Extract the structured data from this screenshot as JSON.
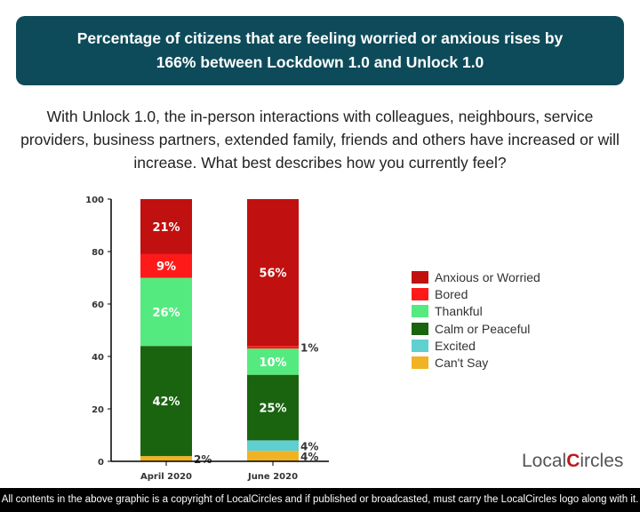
{
  "banner": {
    "title_line1": "Percentage of citizens that are feeling worried or anxious rises by",
    "title_line2": "166% between Lockdown 1.0 and Unlock 1.0"
  },
  "question": "With Unlock 1.0, the in-person interactions with colleagues, neighbours, service providers, business partners, extended family, friends and others have increased or will increase. What best describes how you currently feel?",
  "chart_data": {
    "type": "bar",
    "stacked": true,
    "categories": [
      "April 2020",
      "June 2020"
    ],
    "ylim": [
      0,
      100
    ],
    "yticks": [
      0,
      20,
      40,
      60,
      80,
      100
    ],
    "legend_position": "right",
    "series": [
      {
        "name": "Can't Say",
        "color": "#f0b323",
        "values": [
          2,
          4
        ],
        "labels": [
          "2%",
          "4%"
        ]
      },
      {
        "name": "Excited",
        "color": "#5fcfd0",
        "values": [
          0,
          4
        ],
        "labels": [
          "",
          "4%"
        ]
      },
      {
        "name": "Calm or Peaceful",
        "color": "#1a6410",
        "values": [
          42,
          25
        ],
        "labels": [
          "42%",
          "25%"
        ]
      },
      {
        "name": "Thankful",
        "color": "#55ea7f",
        "values": [
          26,
          10
        ],
        "labels": [
          "26%",
          "10%"
        ]
      },
      {
        "name": "Bored",
        "color": "#ff1a1a",
        "values": [
          9,
          1
        ],
        "labels": [
          "9%",
          "1%"
        ]
      },
      {
        "name": "Anxious or Worried",
        "color": "#c0100f",
        "values": [
          21,
          56
        ],
        "labels": [
          "21%",
          "56%"
        ]
      }
    ]
  },
  "logo": {
    "text_a": "Local",
    "text_c": "C",
    "text_b": "ircles"
  },
  "footer": "All contents in the above graphic is a copyright of LocalCircles and if published or broadcasted, must carry the LocalCircles logo along with it."
}
